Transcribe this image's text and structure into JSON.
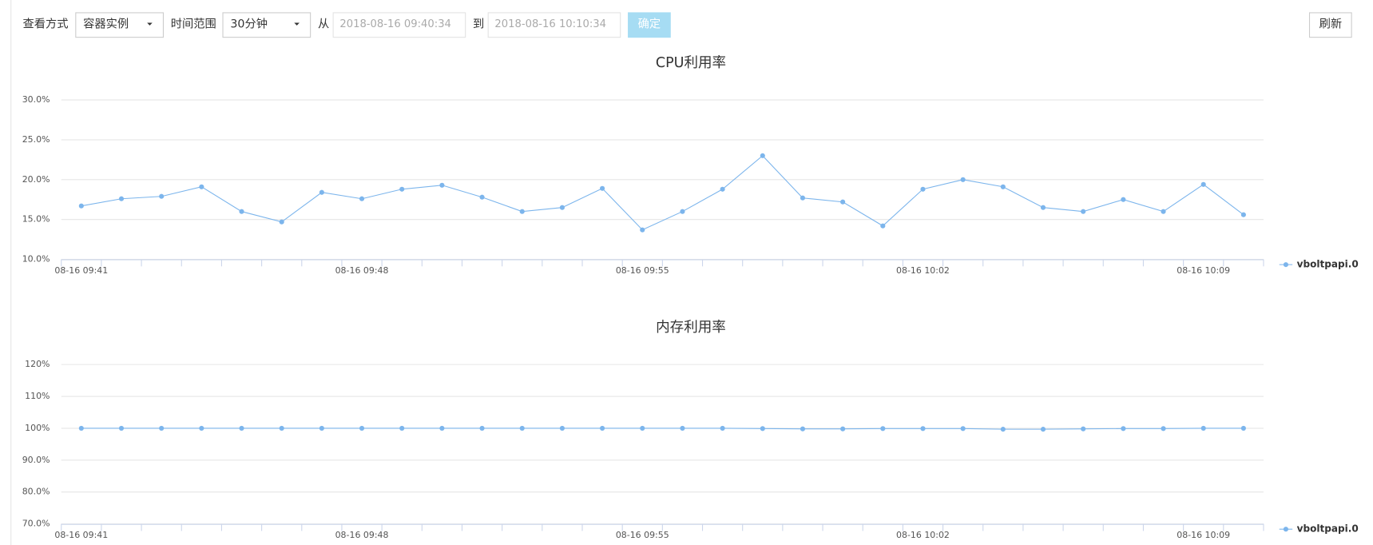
{
  "toolbar": {
    "view_label": "查看方式",
    "view_value": "容器实例",
    "range_label": "时间范围",
    "range_value": "30分钟",
    "from_label": "从",
    "from_value": "2018-08-16 09:40:34",
    "to_label": "到",
    "to_value": "2018-08-16 10:10:34",
    "confirm": "确定",
    "refresh": "刷新"
  },
  "chart_data": [
    {
      "type": "line",
      "title": "CPU利用率",
      "categories": [
        "08-16 09:41",
        null,
        null,
        null,
        null,
        null,
        null,
        "08-16 09:48",
        null,
        null,
        null,
        null,
        null,
        null,
        "08-16 09:55",
        null,
        null,
        null,
        null,
        null,
        null,
        "08-16 10:02",
        null,
        null,
        null,
        null,
        null,
        null,
        "08-16 10:09",
        null
      ],
      "series": [
        {
          "name": "vboltpapi.0",
          "color": "#7cb5ec",
          "values": [
            16.7,
            17.6,
            17.9,
            19.1,
            16.0,
            14.7,
            18.4,
            17.6,
            18.8,
            19.3,
            17.8,
            16.0,
            16.5,
            18.9,
            13.7,
            16.0,
            18.8,
            23.0,
            17.7,
            17.2,
            14.2,
            18.8,
            20.0,
            19.1,
            16.5,
            16.0,
            17.5,
            16.0,
            19.4,
            15.6
          ]
        }
      ],
      "ylim": [
        10,
        30
      ],
      "yticks": [
        {
          "value": 10,
          "label": "10.0%"
        },
        {
          "value": 15,
          "label": "15.0%"
        },
        {
          "value": 20,
          "label": "20.0%"
        },
        {
          "value": 25,
          "label": "25.0%"
        },
        {
          "value": 30,
          "label": "30.0%"
        }
      ],
      "grid": true,
      "legend": "right"
    },
    {
      "type": "line",
      "title": "内存利用率",
      "categories": [
        "08-16 09:41",
        null,
        null,
        null,
        null,
        null,
        null,
        "08-16 09:48",
        null,
        null,
        null,
        null,
        null,
        null,
        "08-16 09:55",
        null,
        null,
        null,
        null,
        null,
        null,
        "08-16 10:02",
        null,
        null,
        null,
        null,
        null,
        null,
        "08-16 10:09",
        null
      ],
      "series": [
        {
          "name": "vboltpapi.0",
          "color": "#7cb5ec",
          "values": [
            100,
            100,
            100,
            100,
            100,
            100,
            100,
            100,
            100,
            100,
            100,
            100,
            100,
            100,
            100,
            100,
            100,
            99.9,
            99.8,
            99.8,
            99.9,
            99.9,
            99.9,
            99.7,
            99.7,
            99.8,
            99.9,
            99.9,
            100,
            100
          ]
        }
      ],
      "ylim": [
        70,
        120
      ],
      "yticks": [
        {
          "value": 70,
          "label": "70.0%"
        },
        {
          "value": 80,
          "label": "80.0%"
        },
        {
          "value": 90,
          "label": "90.0%"
        },
        {
          "value": 100,
          "label": "100%"
        },
        {
          "value": 110,
          "label": "110%"
        },
        {
          "value": 120,
          "label": "120%"
        }
      ],
      "grid": true,
      "legend": "right"
    }
  ]
}
